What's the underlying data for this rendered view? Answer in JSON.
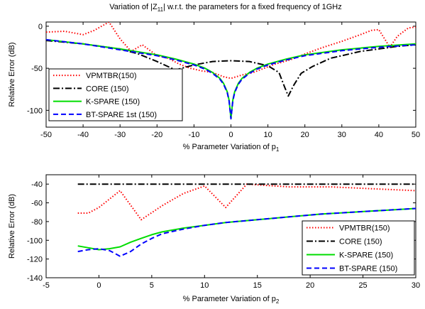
{
  "figure_title": {
    "prefix": "Variation of |Z",
    "sub": "11",
    "suffix": "| w.r.t. the parameters for a fixed frequency of 1GHz"
  },
  "chart_data": [
    {
      "type": "line",
      "ylabel": "Relative Error (dB)",
      "xlabel": {
        "prefix": "% Parameter Variation of p",
        "sub": "1"
      },
      "xlim": [
        -50,
        50
      ],
      "ylim": [
        -120,
        5
      ],
      "xticks": [
        -50,
        -40,
        -30,
        -20,
        -10,
        0,
        10,
        20,
        30,
        40,
        50
      ],
      "yticks": [
        0,
        -50,
        -100
      ],
      "grid": false,
      "legend_position": "lower-left",
      "series": [
        {
          "name": "VPMTBR(150)",
          "color": "#ff0000",
          "style": "dotted",
          "x": [
            -50,
            -45,
            -40,
            -37,
            -33,
            -30,
            -27,
            -24,
            -20,
            -17,
            -14,
            -11,
            -8,
            -5,
            -2,
            0,
            3,
            6,
            9,
            12,
            16,
            20,
            25,
            30,
            35,
            38,
            40,
            43,
            45,
            48,
            50
          ],
          "y": [
            -7,
            -6,
            -10,
            -5,
            5,
            -15,
            -30,
            -22,
            -35,
            -38,
            -45,
            -50,
            -53,
            -55,
            -60,
            -62,
            -58,
            -55,
            -50,
            -45,
            -40,
            -33,
            -25,
            -18,
            -10,
            -5,
            -4,
            -25,
            -12,
            -2,
            -1
          ]
        },
        {
          "name": "CORE (150)",
          "color": "#000000",
          "style": "dashdot",
          "x": [
            -50,
            -40,
            -30,
            -25,
            -20,
            -15,
            -10,
            -5,
            0,
            5,
            10,
            13,
            14.5,
            15.5,
            17,
            19,
            22,
            27,
            30,
            35,
            40,
            45,
            50
          ],
          "y": [
            -17,
            -21,
            -27,
            -33,
            -42,
            -52,
            -46,
            -42,
            -41,
            -42,
            -47,
            -55,
            -72,
            -83,
            -70,
            -56,
            -48,
            -38,
            -35,
            -30,
            -27,
            -24,
            -22
          ]
        },
        {
          "name": "K-SPARE (150)",
          "color": "#00dd00",
          "style": "solid",
          "x": [
            -50,
            -40,
            -30,
            -20,
            -15,
            -10,
            -7,
            -5,
            -3,
            -2,
            -1,
            -0.5,
            0,
            0.5,
            1,
            2,
            3,
            5,
            7,
            10,
            15,
            20,
            30,
            40,
            50
          ],
          "y": [
            -16,
            -21,
            -27,
            -34,
            -39,
            -45,
            -50,
            -55,
            -62,
            -68,
            -78,
            -88,
            -110,
            -88,
            -78,
            -68,
            -62,
            -55,
            -50,
            -45,
            -39,
            -34,
            -28,
            -24,
            -21
          ]
        },
        {
          "name": "BT-SPARE 1st (150)",
          "color": "#0000ff",
          "style": "dashed",
          "x": [
            -50,
            -40,
            -30,
            -20,
            -15,
            -10,
            -7,
            -5,
            -3,
            -2,
            -1,
            -0.5,
            0,
            0.5,
            1,
            2,
            3,
            5,
            7,
            10,
            15,
            20,
            30,
            40,
            50
          ],
          "y": [
            -16,
            -21,
            -28,
            -35,
            -40,
            -46,
            -51,
            -56,
            -63,
            -69,
            -79,
            -89,
            -110,
            -89,
            -79,
            -69,
            -63,
            -56,
            -51,
            -46,
            -40,
            -35,
            -29,
            -25,
            -22
          ]
        }
      ]
    },
    {
      "type": "line",
      "ylabel": "Relative Error (dB)",
      "xlabel": {
        "prefix": "% Parameter Variation of p",
        "sub": "2"
      },
      "xlim": [
        -5,
        30
      ],
      "ylim": [
        -140,
        -30
      ],
      "xticks": [
        -5,
        0,
        5,
        10,
        15,
        20,
        25,
        30
      ],
      "yticks": [
        -40,
        -60,
        -80,
        -100,
        -120,
        -140
      ],
      "grid": false,
      "legend_position": "lower-right",
      "series": [
        {
          "name": "VPMTBR(150)",
          "color": "#ff0000",
          "style": "dotted",
          "x": [
            -2,
            -1,
            0,
            2,
            4,
            6,
            8,
            10,
            12,
            14,
            18,
            22,
            26,
            30
          ],
          "y": [
            -71,
            -71,
            -65,
            -47,
            -78,
            -63,
            -50,
            -42,
            -65,
            -40,
            -43,
            -43,
            -45,
            -47
          ]
        },
        {
          "name": "CORE (150)",
          "color": "#000000",
          "style": "dashdot",
          "x": [
            -2,
            30
          ],
          "y": [
            -40,
            -40
          ]
        },
        {
          "name": "K-SPARE (150)",
          "color": "#00dd00",
          "style": "solid",
          "x": [
            -2,
            -1,
            0,
            1,
            2,
            3,
            4,
            5,
            6,
            8,
            10,
            12,
            15,
            18,
            21,
            24,
            27,
            30
          ],
          "y": [
            -106,
            -108,
            -110,
            -109,
            -107,
            -102,
            -98,
            -94,
            -91,
            -87,
            -84,
            -81,
            -78,
            -75,
            -72,
            -70,
            -68,
            -66
          ]
        },
        {
          "name": "BT-SPARE (150)",
          "color": "#0000ff",
          "style": "dashed",
          "x": [
            -2,
            -1,
            0,
            1,
            2,
            3,
            4,
            5,
            6,
            8,
            10,
            12,
            15,
            18,
            21,
            24,
            27,
            30
          ],
          "y": [
            -112,
            -110,
            -109,
            -111,
            -117,
            -112,
            -104,
            -98,
            -93,
            -88,
            -84,
            -81,
            -78,
            -75,
            -72,
            -70,
            -68,
            -66
          ]
        }
      ]
    }
  ]
}
